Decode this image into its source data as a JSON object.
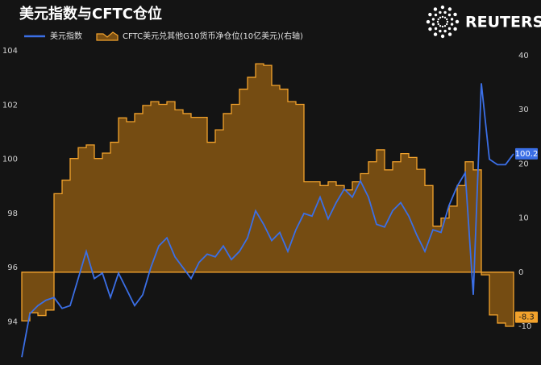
{
  "chart_data": {
    "type": "line-area",
    "title": "美元指数与CFTC仓位",
    "logo_text": "REUTERS",
    "ylim": [
      92.5,
      104
    ],
    "yticks": [
      94,
      96,
      98,
      100,
      102,
      104
    ],
    "y2lim": [
      -16.7,
      40.9
    ],
    "y2ticks": [
      -10,
      0,
      10,
      20,
      30,
      40
    ],
    "grid": false,
    "legend": "top-left",
    "series": [
      {
        "name": "美元指数",
        "color": "#3b6fe6",
        "kind": "line",
        "values": [
          92.7,
          94.3,
          94.6,
          94.8,
          94.9,
          94.5,
          94.6,
          95.6,
          96.6,
          95.6,
          95.8,
          94.9,
          95.8,
          95.2,
          94.6,
          95.0,
          96.0,
          96.8,
          97.1,
          96.4,
          96.0,
          95.6,
          96.2,
          96.5,
          96.4,
          96.8,
          96.3,
          96.6,
          97.1,
          98.1,
          97.6,
          97.0,
          97.3,
          96.6,
          97.4,
          98.0,
          97.9,
          98.6,
          97.8,
          98.4,
          98.9,
          98.6,
          99.2,
          98.6,
          97.6,
          97.5,
          98.1,
          98.4,
          97.9,
          97.2,
          96.6,
          97.4,
          97.3,
          98.3,
          99.0,
          99.5,
          95.0,
          102.8,
          100.0,
          99.8,
          99.8,
          100.2
        ]
      },
      {
        "name": "CFTC美元兑其他G10货币净仓位(10亿美元)(右轴)",
        "color": "#f2a22c",
        "kind": "step-area",
        "axis": "y2",
        "values": [
          -9,
          -7.5,
          -8,
          -7,
          14.5,
          17,
          21,
          23,
          23.5,
          21,
          22,
          24,
          28.5,
          27.8,
          29.3,
          30.8,
          31.5,
          31,
          31.5,
          30,
          29.3,
          28.6,
          28.6,
          24,
          26.3,
          29.3,
          31,
          33.8,
          36,
          38.5,
          38.2,
          34.5,
          33.8,
          31.5,
          31,
          16.7,
          16.7,
          16,
          16.7,
          16,
          15.2,
          16.7,
          18.2,
          20.4,
          22.6,
          18.9,
          20.4,
          21.9,
          21.2,
          19,
          16,
          8.5,
          10,
          12.2,
          16,
          20.4,
          18.9,
          -0.5,
          -7.9,
          -9.4,
          -10,
          -8.3
        ]
      }
    ]
  }
}
